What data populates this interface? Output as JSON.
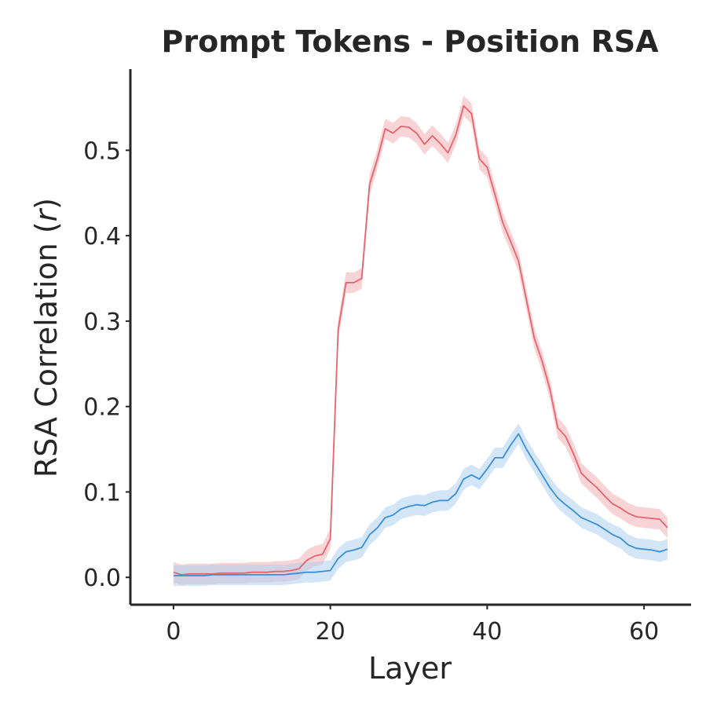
{
  "chart_data": {
    "type": "line",
    "title": "Prompt Tokens - Position RSA",
    "xlabel": "Layer",
    "ylabel_main": "RSA Correlation (",
    "ylabel_var": "r",
    "ylabel_end": ")",
    "xlim": [
      -5.5,
      66
    ],
    "ylim": [
      -0.032,
      0.595
    ],
    "xticks": [
      0,
      20,
      40,
      60
    ],
    "yticks": [
      0.0,
      0.1,
      0.2,
      0.3,
      0.4,
      0.5
    ],
    "ytick_labels": [
      "0.0",
      "0.1",
      "0.2",
      "0.3",
      "0.4",
      "0.5"
    ],
    "grid": false,
    "legend": "none",
    "x": [
      0,
      1,
      2,
      3,
      4,
      5,
      6,
      7,
      8,
      9,
      10,
      11,
      12,
      13,
      14,
      15,
      16,
      17,
      18,
      19,
      20,
      21,
      22,
      23,
      24,
      25,
      26,
      27,
      28,
      29,
      30,
      31,
      32,
      33,
      34,
      35,
      36,
      37,
      38,
      39,
      40,
      41,
      42,
      43,
      44,
      45,
      46,
      47,
      48,
      49,
      50,
      51,
      52,
      53,
      54,
      55,
      56,
      57,
      58,
      59,
      60,
      61,
      62,
      63
    ],
    "series": [
      {
        "color": "#e8636b",
        "band_color": "#f4a9ae",
        "band": 0.012,
        "values": [
          0.006,
          0.003,
          0.004,
          0.004,
          0.004,
          0.004,
          0.005,
          0.005,
          0.005,
          0.005,
          0.006,
          0.006,
          0.006,
          0.007,
          0.007,
          0.008,
          0.01,
          0.02,
          0.025,
          0.027,
          0.045,
          0.29,
          0.345,
          0.345,
          0.35,
          0.46,
          0.49,
          0.525,
          0.52,
          0.528,
          0.527,
          0.52,
          0.507,
          0.517,
          0.508,
          0.497,
          0.518,
          0.552,
          0.543,
          0.49,
          0.48,
          0.448,
          0.415,
          0.393,
          0.37,
          0.325,
          0.28,
          0.253,
          0.22,
          0.175,
          0.165,
          0.145,
          0.122,
          0.113,
          0.105,
          0.095,
          0.086,
          0.081,
          0.075,
          0.071,
          0.07,
          0.069,
          0.068,
          0.058
        ]
      },
      {
        "color": "#3a8fd9",
        "band_color": "#a8cdf0",
        "band": 0.012,
        "values": [
          0.002,
          0.002,
          0.002,
          0.002,
          0.002,
          0.003,
          0.003,
          0.003,
          0.003,
          0.003,
          0.003,
          0.003,
          0.003,
          0.003,
          0.003,
          0.004,
          0.005,
          0.006,
          0.006,
          0.007,
          0.008,
          0.022,
          0.03,
          0.032,
          0.035,
          0.05,
          0.058,
          0.07,
          0.073,
          0.08,
          0.083,
          0.085,
          0.084,
          0.088,
          0.09,
          0.09,
          0.098,
          0.115,
          0.12,
          0.115,
          0.127,
          0.14,
          0.14,
          0.155,
          0.168,
          0.15,
          0.135,
          0.12,
          0.105,
          0.093,
          0.085,
          0.078,
          0.07,
          0.066,
          0.062,
          0.056,
          0.05,
          0.046,
          0.038,
          0.034,
          0.033,
          0.032,
          0.03,
          0.033
        ]
      }
    ]
  }
}
